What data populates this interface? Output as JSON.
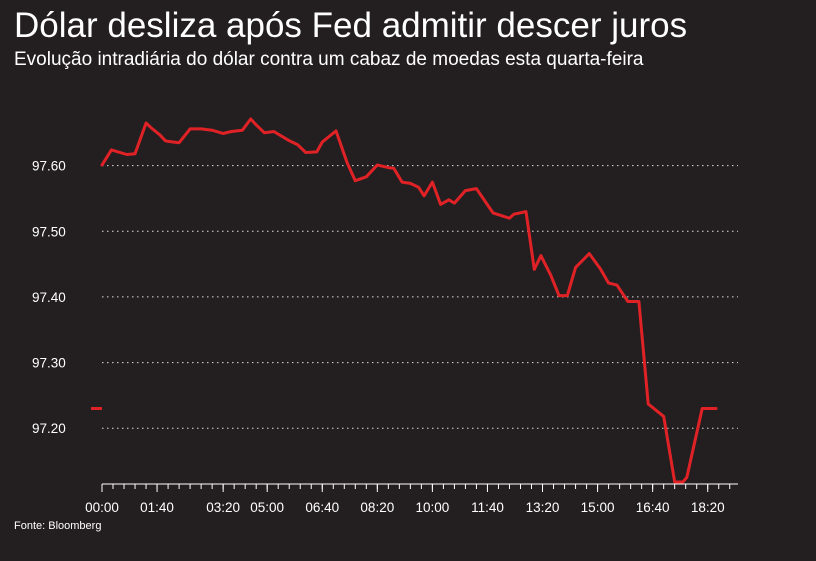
{
  "header": {
    "title": "Dólar desliza após Fed admitir descer juros",
    "subtitle": "Evolução intradiária do dólar contra um cabaz de moedas esta quarta-feira"
  },
  "footer": {
    "source": "Fonte: Bloomberg"
  },
  "colors": {
    "background": "#231f20",
    "line": "#e02226",
    "text": "#ffffff",
    "grid": "#ffffff"
  },
  "chart_data": {
    "type": "line",
    "title": "Dólar desliza após Fed admitir descer juros",
    "subtitle": "Evolução intradiária do dólar contra um cabaz de moedas esta quarta-feira",
    "xlabel": "",
    "ylabel": "",
    "ylim": [
      97.115,
      97.7
    ],
    "yticks": [
      97.2,
      97.3,
      97.4,
      97.5,
      97.6
    ],
    "ytick_labels": [
      "97.20",
      "97.30",
      "97.40",
      "97.50",
      "97.60"
    ],
    "xlim": [
      0,
      1155
    ],
    "xticks": [
      0,
      100,
      220,
      300,
      400,
      500,
      600,
      700,
      800,
      900,
      1000,
      1100
    ],
    "xtick_labels": [
      "00:00",
      "01:40",
      "03:20",
      "05:00",
      "06:40",
      "08:20",
      "10:00",
      "11:40",
      "13:20",
      "15:00",
      "16:40",
      "18:20"
    ],
    "grid": "horizontal dotted",
    "legend": "none",
    "series": [
      {
        "x": [
          0,
          17,
          45,
          60,
          80,
          90,
          105,
          115,
          120,
          140,
          160,
          180,
          200,
          220,
          235,
          255,
          270,
          280,
          295,
          312,
          340,
          355,
          370,
          390,
          400,
          425,
          445,
          460,
          480,
          500,
          520,
          530,
          545,
          560,
          575,
          585,
          600,
          615,
          630,
          640,
          660,
          680,
          710,
          740,
          748,
          770,
          785,
          797,
          815,
          830,
          845,
          860,
          885,
          905,
          920,
          935,
          955,
          975,
          992,
          1020,
          1040,
          1055,
          1062,
          1090,
          1100,
          1115
        ],
        "y": [
          97.601,
          97.624,
          97.617,
          97.618,
          97.665,
          97.657,
          97.647,
          97.638,
          97.637,
          97.635,
          97.656,
          97.656,
          97.654,
          97.649,
          97.652,
          97.654,
          97.671,
          97.662,
          97.65,
          97.652,
          97.638,
          97.632,
          97.62,
          97.621,
          97.636,
          97.653,
          97.605,
          97.577,
          97.583,
          97.601,
          97.597,
          97.596,
          97.575,
          97.573,
          97.567,
          97.554,
          97.575,
          97.541,
          97.548,
          97.543,
          97.562,
          97.565,
          97.528,
          97.52,
          97.526,
          97.53,
          97.442,
          97.463,
          97.433,
          97.402,
          97.402,
          97.445,
          97.466,
          97.443,
          97.421,
          97.418,
          97.393,
          97.393,
          97.237,
          97.218,
          97.118,
          97.118,
          97.125,
          97.23,
          97.23,
          97.23
        ]
      }
    ]
  }
}
